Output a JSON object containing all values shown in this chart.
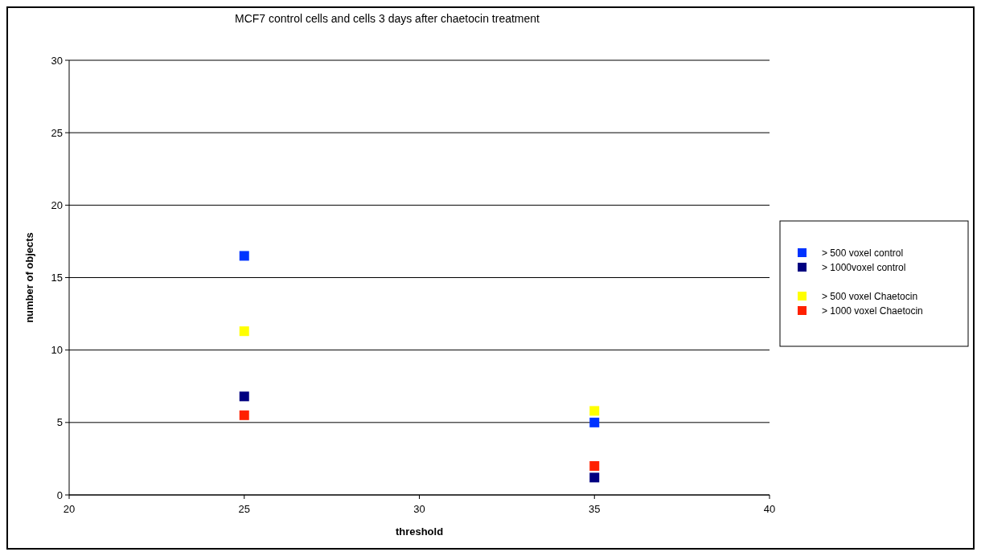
{
  "chart_data": {
    "type": "scatter",
    "title": "MCF7 control cells and cells 3 days after chaetocin treatment",
    "xlabel": "threshold",
    "ylabel": "number of objects",
    "x": [
      25,
      35
    ],
    "xlim": [
      20,
      40
    ],
    "xticks": [
      20,
      25,
      30,
      35,
      40
    ],
    "ylim": [
      0,
      30
    ],
    "yticks": [
      0,
      5,
      10,
      15,
      20,
      25,
      30
    ],
    "grid": "y",
    "legend": "right",
    "marker": "square",
    "series": [
      {
        "name": "> 500 voxel control",
        "color": "#0033ff",
        "values": [
          16.5,
          5.0
        ]
      },
      {
        "name": "> 1000voxel control",
        "color": "#000080",
        "values": [
          6.8,
          1.2
        ]
      },
      {
        "name": "> 500 voxel Chaetocin",
        "color": "#ffff00",
        "values": [
          11.3,
          5.8
        ]
      },
      {
        "name": "> 1000 voxel Chaetocin",
        "color": "#ff2000",
        "values": [
          5.5,
          2.0
        ]
      }
    ]
  }
}
